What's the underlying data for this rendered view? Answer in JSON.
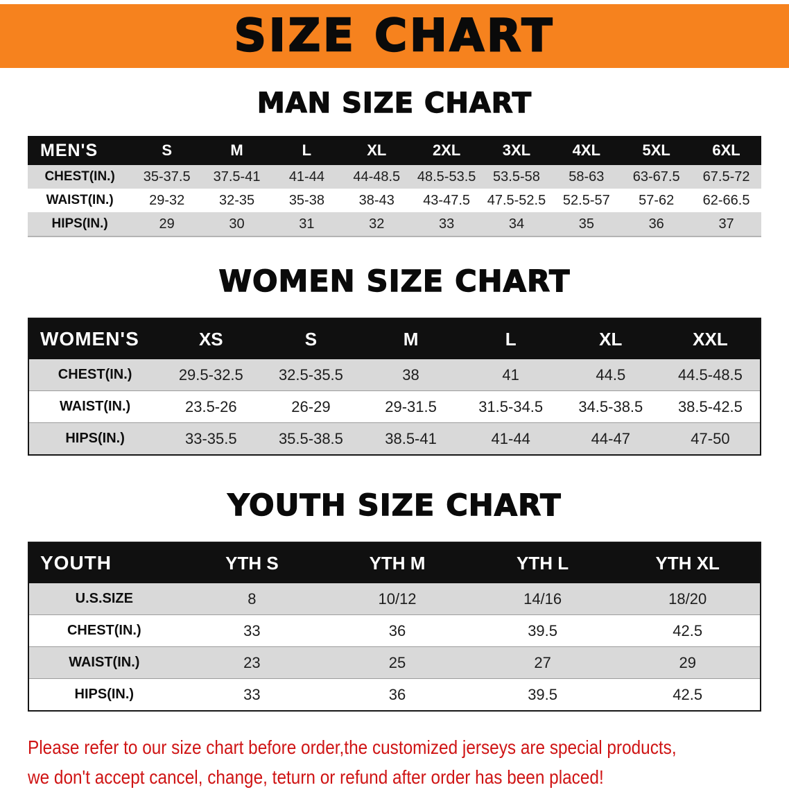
{
  "banner": {
    "title": "SIZE CHART"
  },
  "colors": {
    "banner_orange": "#f6821e",
    "table_header_black": "#101010",
    "row_shade_gray": "#d9d9d9",
    "note_red": "#cf1414"
  },
  "chart_data": [
    {
      "type": "table",
      "title": "MAN SIZE CHART",
      "header_label": "MEN'S",
      "columns": [
        "S",
        "M",
        "L",
        "XL",
        "2XL",
        "3XL",
        "4XL",
        "5XL",
        "6XL"
      ],
      "rows": [
        {
          "label": "CHEST(IN.)",
          "values": [
            "35-37.5",
            "37.5-41",
            "41-44",
            "44-48.5",
            "48.5-53.5",
            "53.5-58",
            "58-63",
            "63-67.5",
            "67.5-72"
          ]
        },
        {
          "label": "WAIST(IN.)",
          "values": [
            "29-32",
            "32-35",
            "35-38",
            "38-43",
            "43-47.5",
            "47.5-52.5",
            "52.5-57",
            "57-62",
            "62-66.5"
          ]
        },
        {
          "label": "HIPS(IN.)",
          "values": [
            "29",
            "30",
            "31",
            "32",
            "33",
            "34",
            "35",
            "36",
            "37"
          ]
        }
      ]
    },
    {
      "type": "table",
      "title": "WOMEN SIZE CHART",
      "header_label": "WOMEN'S",
      "columns": [
        "XS",
        "S",
        "M",
        "L",
        "XL",
        "XXL"
      ],
      "rows": [
        {
          "label": "CHEST(IN.)",
          "values": [
            "29.5-32.5",
            "32.5-35.5",
            "38",
            "41",
            "44.5",
            "44.5-48.5"
          ]
        },
        {
          "label": "WAIST(IN.)",
          "values": [
            "23.5-26",
            "26-29",
            "29-31.5",
            "31.5-34.5",
            "34.5-38.5",
            "38.5-42.5"
          ]
        },
        {
          "label": "HIPS(IN.)",
          "values": [
            "33-35.5",
            "35.5-38.5",
            "38.5-41",
            "41-44",
            "44-47",
            "47-50"
          ]
        }
      ]
    },
    {
      "type": "table",
      "title": "YOUTH SIZE CHART",
      "header_label": "YOUTH",
      "columns": [
        "YTH S",
        "YTH M",
        "YTH L",
        "YTH XL"
      ],
      "rows": [
        {
          "label": "U.S.SIZE",
          "values": [
            "8",
            "10/12",
            "14/16",
            "18/20"
          ]
        },
        {
          "label": "CHEST(IN.)",
          "values": [
            "33",
            "36",
            "39.5",
            "42.5"
          ]
        },
        {
          "label": "WAIST(IN.)",
          "values": [
            "23",
            "25",
            "27",
            "29"
          ]
        },
        {
          "label": "HIPS(IN.)",
          "values": [
            "33",
            "36",
            "39.5",
            "42.5"
          ]
        }
      ]
    }
  ],
  "footer": {
    "line1": "Please refer to our size chart before order,the customized jerseys are special products,",
    "line2": "we don't accept cancel, change, teturn or refund after order has been placed!"
  }
}
